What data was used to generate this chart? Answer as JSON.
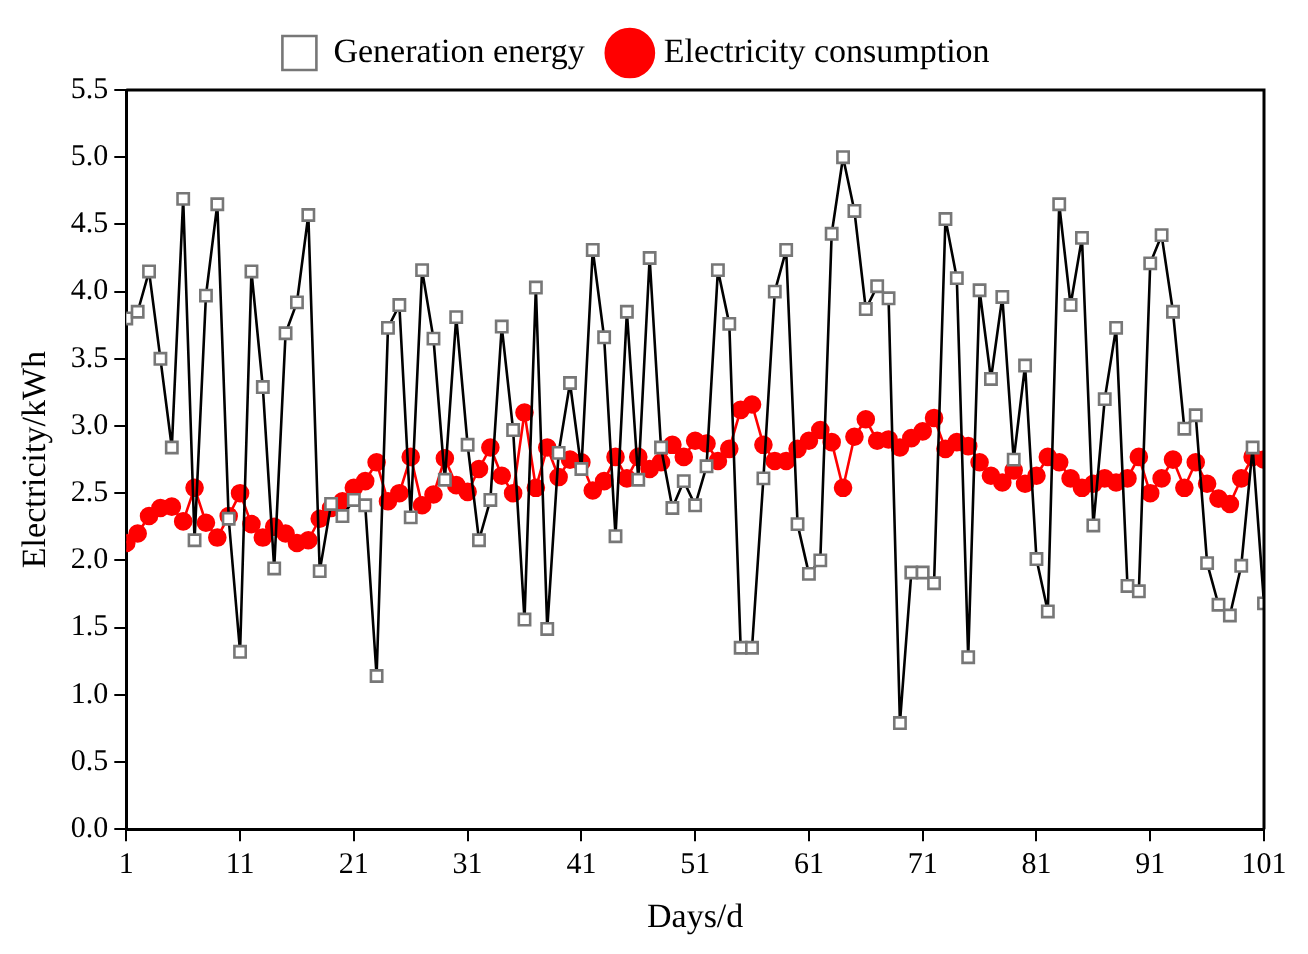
{
  "chart_data": {
    "type": "line",
    "xlabel": "Days/d",
    "ylabel": "Electricity/kWh",
    "x": [
      1,
      2,
      3,
      4,
      5,
      6,
      7,
      8,
      9,
      10,
      11,
      12,
      13,
      14,
      15,
      16,
      17,
      18,
      19,
      20,
      21,
      22,
      23,
      24,
      25,
      26,
      27,
      28,
      29,
      30,
      31,
      32,
      33,
      34,
      35,
      36,
      37,
      38,
      39,
      40,
      41,
      42,
      43,
      44,
      45,
      46,
      47,
      48,
      49,
      50,
      51,
      52,
      53,
      54,
      55,
      56,
      57,
      58,
      59,
      60,
      61,
      62,
      63,
      64,
      65,
      66,
      67,
      68,
      69,
      70,
      71,
      72,
      73,
      74,
      75,
      76,
      77,
      78,
      79,
      80,
      81,
      82,
      83,
      84,
      85,
      86,
      87,
      88,
      89,
      90,
      91,
      92,
      93,
      94,
      95,
      96,
      97,
      98,
      99,
      100,
      101
    ],
    "series": [
      {
        "name": "Generation energy",
        "color": "#000000",
        "marker": "square",
        "values": [
          3.8,
          3.85,
          4.15,
          3.5,
          2.84,
          4.69,
          2.15,
          3.97,
          4.65,
          2.31,
          1.32,
          4.15,
          3.29,
          1.94,
          3.69,
          3.92,
          4.57,
          1.92,
          2.42,
          2.33,
          2.45,
          2.41,
          1.14,
          3.73,
          3.9,
          2.32,
          4.16,
          3.65,
          2.6,
          3.81,
          2.86,
          2.15,
          2.45,
          3.74,
          2.97,
          1.56,
          4.03,
          1.49,
          2.8,
          3.32,
          2.68,
          4.31,
          3.66,
          2.18,
          3.85,
          2.6,
          4.25,
          2.84,
          2.39,
          2.59,
          2.41,
          2.7,
          4.16,
          3.76,
          1.35,
          1.35,
          2.61,
          4.0,
          4.31,
          2.27,
          1.9,
          2.0,
          4.43,
          5.0,
          4.6,
          3.87,
          4.04,
          3.95,
          0.79,
          1.91,
          1.91,
          1.83,
          4.54,
          4.1,
          1.28,
          4.01,
          3.35,
          3.96,
          2.75,
          3.45,
          2.01,
          1.62,
          4.65,
          3.9,
          4.4,
          2.26,
          3.2,
          3.73,
          1.81,
          1.77,
          4.21,
          4.42,
          3.85,
          2.98,
          3.08,
          1.98,
          1.67,
          1.59,
          1.96,
          2.84,
          1.68
        ]
      },
      {
        "name": "Electricity consumption",
        "color": "#ff0000",
        "marker": "circle",
        "values": [
          2.13,
          2.2,
          2.33,
          2.39,
          2.4,
          2.29,
          2.54,
          2.28,
          2.17,
          2.33,
          2.5,
          2.27,
          2.17,
          2.25,
          2.2,
          2.13,
          2.15,
          2.31,
          2.39,
          2.44,
          2.54,
          2.59,
          2.73,
          2.44,
          2.5,
          2.77,
          2.41,
          2.49,
          2.76,
          2.56,
          2.51,
          2.68,
          2.84,
          2.63,
          2.5,
          3.1,
          2.54,
          2.84,
          2.62,
          2.75,
          2.73,
          2.52,
          2.59,
          2.77,
          2.61,
          2.77,
          2.68,
          2.73,
          2.86,
          2.77,
          2.89,
          2.87,
          2.74,
          2.83,
          3.12,
          3.16,
          2.86,
          2.74,
          2.74,
          2.83,
          2.89,
          2.97,
          2.88,
          2.54,
          2.92,
          3.05,
          2.89,
          2.9,
          2.84,
          2.91,
          2.96,
          3.06,
          2.83,
          2.88,
          2.85,
          2.73,
          2.63,
          2.58,
          2.67,
          2.57,
          2.63,
          2.77,
          2.73,
          2.61,
          2.54,
          2.57,
          2.61,
          2.58,
          2.61,
          2.77,
          2.5,
          2.61,
          2.75,
          2.54,
          2.73,
          2.57,
          2.46,
          2.42,
          2.61,
          2.77,
          2.75
        ]
      }
    ],
    "xlim": [
      1,
      101
    ],
    "xticks": [
      1,
      11,
      21,
      31,
      41,
      51,
      61,
      71,
      81,
      91,
      101
    ],
    "ylim": [
      0,
      5.5
    ],
    "yticks": [
      {
        "value": 0,
        "label": "0.0"
      },
      0.5,
      {
        "value": 1,
        "label": "1.0"
      },
      1.5,
      {
        "value": 2,
        "label": "2.0"
      },
      2.5,
      {
        "value": 3,
        "label": "3.0"
      },
      3.5,
      {
        "value": 4,
        "label": "4.0"
      },
      4.5,
      {
        "value": 5,
        "label": "5.0"
      },
      5.5
    ],
    "legend": "top",
    "grid": false
  }
}
